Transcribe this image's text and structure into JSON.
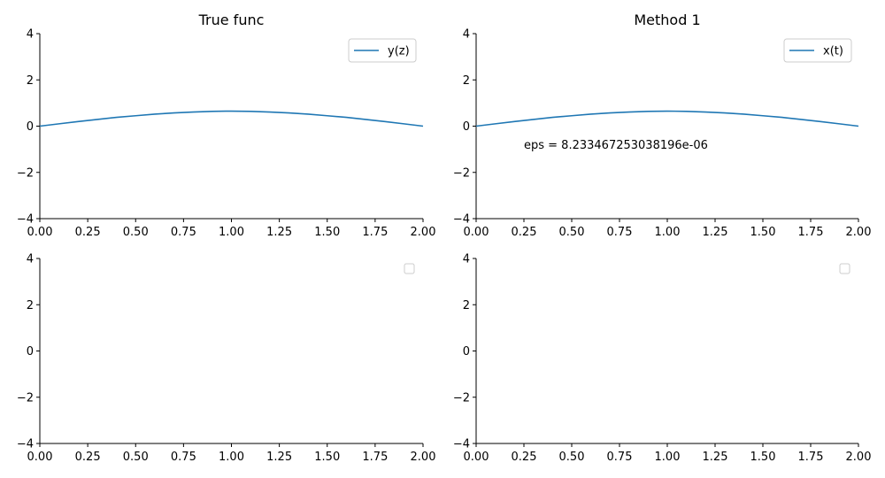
{
  "chart_data": [
    {
      "type": "line",
      "title": "True func",
      "xlabel": "",
      "ylabel": "",
      "xlim": [
        0,
        2
      ],
      "ylim": [
        -4,
        4
      ],
      "xticks": [
        "0.00",
        "0.25",
        "0.50",
        "0.75",
        "1.00",
        "1.25",
        "1.50",
        "1.75",
        "2.00"
      ],
      "yticks": [
        "4",
        "2",
        "0",
        "−2",
        "−4"
      ],
      "grid": false,
      "legend_position": "top-right",
      "series": [
        {
          "name": "y(z)",
          "color": "#1f77b4",
          "x": [
            0,
            0.1,
            0.2,
            0.3,
            0.4,
            0.5,
            0.6,
            0.7,
            0.8,
            0.9,
            1.0,
            1.1,
            1.2,
            1.3,
            1.4,
            1.5,
            1.6,
            1.7,
            1.8,
            1.9,
            2.0
          ],
          "y": [
            0,
            0.1,
            0.2,
            0.29,
            0.38,
            0.45,
            0.52,
            0.57,
            0.61,
            0.64,
            0.65,
            0.64,
            0.61,
            0.57,
            0.52,
            0.45,
            0.38,
            0.29,
            0.2,
            0.1,
            0
          ]
        }
      ],
      "annotations": []
    },
    {
      "type": "line",
      "title": "Method 1",
      "xlabel": "",
      "ylabel": "",
      "xlim": [
        0,
        2
      ],
      "ylim": [
        -4,
        4
      ],
      "xticks": [
        "0.00",
        "0.25",
        "0.50",
        "0.75",
        "1.00",
        "1.25",
        "1.50",
        "1.75",
        "2.00"
      ],
      "yticks": [
        "4",
        "2",
        "0",
        "−2",
        "−4"
      ],
      "grid": false,
      "legend_position": "top-right",
      "series": [
        {
          "name": "x(t)",
          "color": "#1f77b4",
          "x": [
            0,
            0.1,
            0.2,
            0.3,
            0.4,
            0.5,
            0.6,
            0.7,
            0.8,
            0.9,
            1.0,
            1.1,
            1.2,
            1.3,
            1.4,
            1.5,
            1.6,
            1.7,
            1.8,
            1.9,
            2.0
          ],
          "y": [
            0,
            0.1,
            0.2,
            0.29,
            0.38,
            0.45,
            0.52,
            0.57,
            0.61,
            0.64,
            0.65,
            0.64,
            0.61,
            0.57,
            0.52,
            0.45,
            0.38,
            0.29,
            0.2,
            0.1,
            0
          ]
        }
      ],
      "annotations": [
        {
          "text": "eps = 8.233467253038196e-06",
          "x": 0.25,
          "y": -0.8
        }
      ]
    },
    {
      "type": "line",
      "title": "",
      "xlabel": "",
      "ylabel": "",
      "xlim": [
        0,
        2
      ],
      "ylim": [
        -4,
        4
      ],
      "xticks": [
        "0.00",
        "0.25",
        "0.50",
        "0.75",
        "1.00",
        "1.25",
        "1.50",
        "1.75",
        "2.00"
      ],
      "yticks": [
        "4",
        "2",
        "0",
        "−2",
        "−4"
      ],
      "grid": false,
      "legend_position": "top-right",
      "series": [],
      "annotations": []
    },
    {
      "type": "line",
      "title": "",
      "xlabel": "",
      "ylabel": "",
      "xlim": [
        0,
        2
      ],
      "ylim": [
        -4,
        4
      ],
      "xticks": [
        "0.00",
        "0.25",
        "0.50",
        "0.75",
        "1.00",
        "1.25",
        "1.50",
        "1.75",
        "2.00"
      ],
      "yticks": [
        "4",
        "2",
        "0",
        "−2",
        "−4"
      ],
      "grid": false,
      "legend_position": "top-right",
      "series": [],
      "annotations": []
    }
  ]
}
